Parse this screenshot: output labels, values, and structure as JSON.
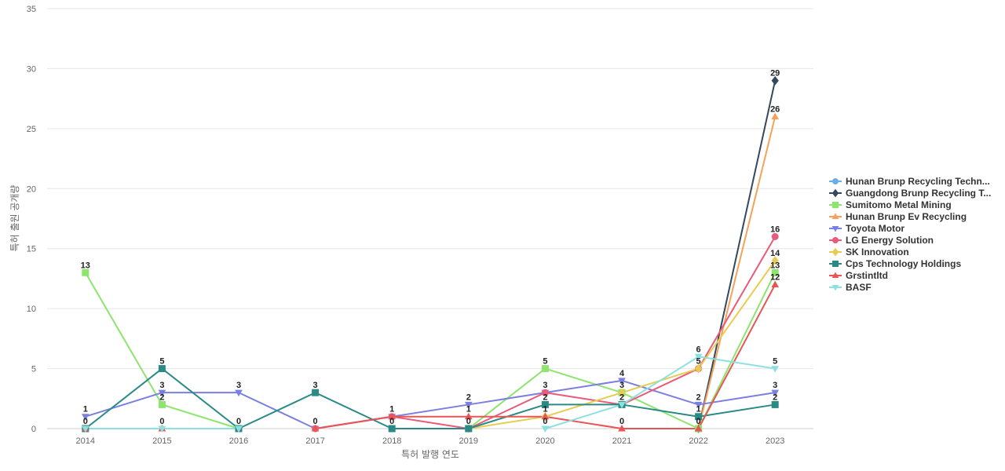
{
  "chart_data": {
    "type": "line",
    "xlabel": "특허 발행 연도",
    "ylabel": "특허 출원 공개량",
    "ylim": [
      0,
      35
    ],
    "yticks": [
      0,
      5,
      10,
      15,
      20,
      25,
      30,
      35
    ],
    "categories": [
      "2014",
      "2015",
      "2016",
      "2017",
      "2018",
      "2019",
      "2020",
      "2021",
      "2022",
      "2023"
    ],
    "grid": true,
    "legend_position": "right",
    "series": [
      {
        "name": "Hunan Brunp Recycling Techn...",
        "color": "#6aaee8",
        "marker": "circle",
        "values": [
          null,
          null,
          null,
          null,
          null,
          null,
          null,
          null,
          null,
          null
        ]
      },
      {
        "name": "Guangdong Brunp Recycling T...",
        "color": "#34495e",
        "marker": "diamond",
        "values": [
          null,
          null,
          null,
          null,
          null,
          null,
          null,
          null,
          0,
          29
        ]
      },
      {
        "name": "Sumitomo Metal Mining",
        "color": "#8de46e",
        "marker": "square",
        "values": [
          13,
          2,
          0,
          null,
          null,
          0,
          5,
          3,
          0,
          13
        ]
      },
      {
        "name": "Hunan Brunp Ev Recycling",
        "color": "#f4a259",
        "marker": "triangle",
        "values": [
          null,
          null,
          null,
          null,
          null,
          null,
          null,
          null,
          0,
          26
        ]
      },
      {
        "name": "Toyota Motor",
        "color": "#7b80e0",
        "marker": "triangle-down",
        "values": [
          1,
          3,
          3,
          0,
          1,
          2,
          3,
          4,
          2,
          3
        ]
      },
      {
        "name": "LG Energy Solution",
        "color": "#ea5a7a",
        "marker": "circle",
        "values": [
          null,
          null,
          null,
          0,
          1,
          0,
          3,
          2,
          5,
          16
        ]
      },
      {
        "name": "SK Innovation",
        "color": "#e8cc52",
        "marker": "diamond",
        "values": [
          null,
          null,
          null,
          null,
          null,
          0,
          1,
          3,
          5,
          14
        ]
      },
      {
        "name": "Cps Technology Holdings",
        "color": "#2a8a86",
        "marker": "square",
        "values": [
          0,
          5,
          0,
          3,
          0,
          0,
          2,
          2,
          1,
          2
        ]
      },
      {
        "name": "Grstintltd",
        "color": "#e85555",
        "marker": "triangle",
        "values": [
          0,
          0,
          null,
          0,
          1,
          1,
          1,
          0,
          0,
          12
        ]
      },
      {
        "name": "BASF",
        "color": "#8ee0e0",
        "marker": "triangle-down",
        "values": [
          0,
          0,
          0,
          null,
          null,
          null,
          0,
          2,
          6,
          5
        ]
      }
    ],
    "data_labels": [
      {
        "x": "2014",
        "y": 13,
        "text": "13"
      },
      {
        "x": "2014",
        "y": 1,
        "text": "1"
      },
      {
        "x": "2014",
        "y": 0,
        "text": "0"
      },
      {
        "x": "2015",
        "y": 5,
        "text": "5"
      },
      {
        "x": "2015",
        "y": 3,
        "text": "3"
      },
      {
        "x": "2015",
        "y": 2,
        "text": "2"
      },
      {
        "x": "2015",
        "y": 0,
        "text": "0"
      },
      {
        "x": "2016",
        "y": 3,
        "text": "3"
      },
      {
        "x": "2016",
        "y": 0,
        "text": "0"
      },
      {
        "x": "2017",
        "y": 3,
        "text": "3"
      },
      {
        "x": "2017",
        "y": 0,
        "text": "0"
      },
      {
        "x": "2018",
        "y": 1,
        "text": "1"
      },
      {
        "x": "2018",
        "y": 0,
        "text": "0"
      },
      {
        "x": "2019",
        "y": 2,
        "text": "2"
      },
      {
        "x": "2019",
        "y": 1,
        "text": "1"
      },
      {
        "x": "2019",
        "y": 0,
        "text": "0"
      },
      {
        "x": "2020",
        "y": 5,
        "text": "5"
      },
      {
        "x": "2020",
        "y": 3,
        "text": "3"
      },
      {
        "x": "2020",
        "y": 2,
        "text": "2"
      },
      {
        "x": "2020",
        "y": 1,
        "text": "1"
      },
      {
        "x": "2020",
        "y": 0,
        "text": "0"
      },
      {
        "x": "2021",
        "y": 4,
        "text": "4"
      },
      {
        "x": "2021",
        "y": 3,
        "text": "3"
      },
      {
        "x": "2021",
        "y": 2,
        "text": "2"
      },
      {
        "x": "2021",
        "y": 0,
        "text": "0"
      },
      {
        "x": "2022",
        "y": 6,
        "text": "6"
      },
      {
        "x": "2022",
        "y": 5,
        "text": "5"
      },
      {
        "x": "2022",
        "y": 2,
        "text": "2"
      },
      {
        "x": "2022",
        "y": 1,
        "text": "1"
      },
      {
        "x": "2022",
        "y": 0,
        "text": "0"
      },
      {
        "x": "2023",
        "y": 29,
        "text": "29"
      },
      {
        "x": "2023",
        "y": 26,
        "text": "26"
      },
      {
        "x": "2023",
        "y": 16,
        "text": "16"
      },
      {
        "x": "2023",
        "y": 14,
        "text": "14"
      },
      {
        "x": "2023",
        "y": 13,
        "text": "13"
      },
      {
        "x": "2023",
        "y": 12,
        "text": "12"
      },
      {
        "x": "2023",
        "y": 5,
        "text": "5"
      },
      {
        "x": "2023",
        "y": 3,
        "text": "3"
      },
      {
        "x": "2023",
        "y": 2,
        "text": "2"
      }
    ]
  }
}
